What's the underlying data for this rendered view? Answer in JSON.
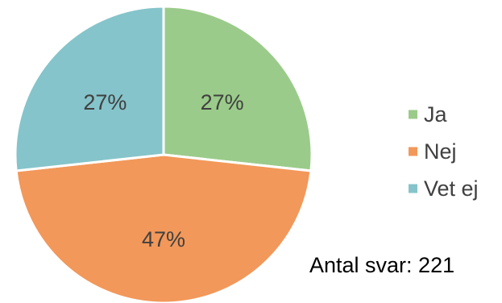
{
  "chart_data": {
    "type": "pie",
    "categories": [
      "Ja",
      "Nej",
      "Vet ej"
    ],
    "values": [
      27,
      47,
      27
    ],
    "value_labels": [
      "27%",
      "47%",
      "27%"
    ],
    "unit": "%",
    "colors": [
      "#9BCB8A",
      "#F2985A",
      "#85C4CA"
    ],
    "start_angle_deg": 0,
    "direction": "clockwise",
    "legend": {
      "placement": "right",
      "entries": [
        "Ja",
        "Nej",
        "Vet ej"
      ]
    },
    "title": "",
    "annotation": "Antal svar: 221"
  }
}
